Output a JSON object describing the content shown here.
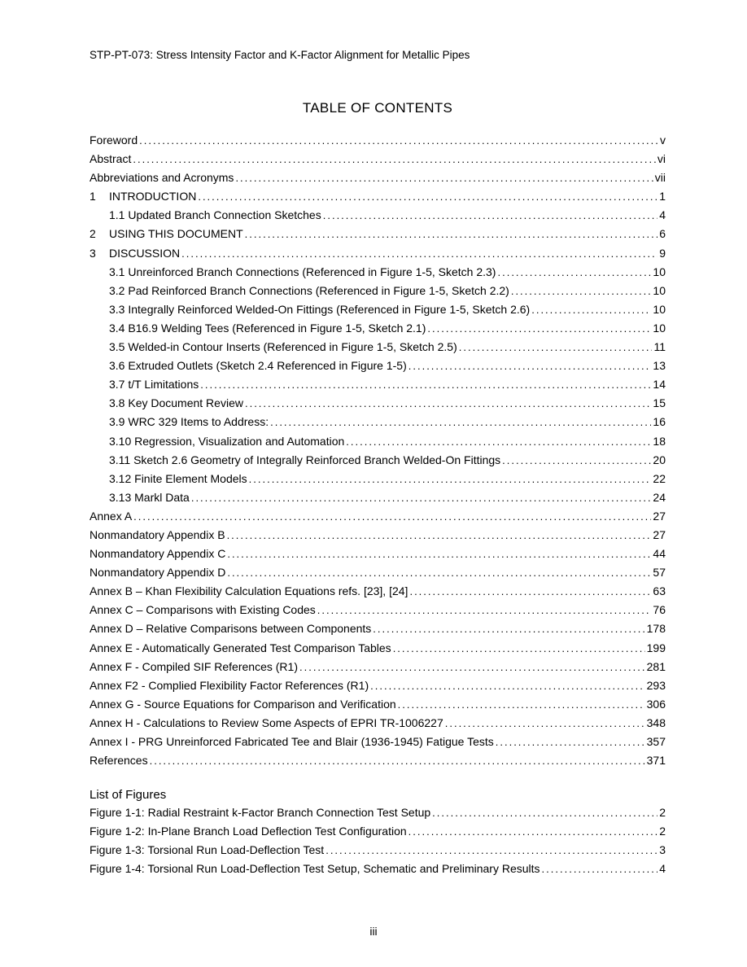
{
  "header": "STP-PT-073:  Stress Intensity Factor and K-Factor Alignment for Metallic Pipes",
  "title": "TABLE OF CONTENTS",
  "list_of_figures_title": "List of Figures",
  "page_number": "iii",
  "toc": [
    {
      "num": "",
      "indent": 0,
      "label": "Foreword",
      "page": "v"
    },
    {
      "num": "",
      "indent": 0,
      "label": "Abstract",
      "page": "vi"
    },
    {
      "num": "",
      "indent": 0,
      "label": "Abbreviations and Acronyms",
      "page": " vii"
    },
    {
      "num": "1",
      "indent": 0,
      "label": "INTRODUCTION",
      "page": "1"
    },
    {
      "num": "",
      "indent": 1,
      "label": "1.1 Updated Branch Connection Sketches",
      "page": "4"
    },
    {
      "num": "2",
      "indent": 0,
      "label": "USING THIS DOCUMENT",
      "page": "6"
    },
    {
      "num": "3",
      "indent": 0,
      "label": "DISCUSSION",
      "page": "9"
    },
    {
      "num": "",
      "indent": 1,
      "label": "3.1 Unreinforced Branch Connections (Referenced in Figure 1-5, Sketch 2.3)",
      "page": "10"
    },
    {
      "num": "",
      "indent": 1,
      "label": "3.2 Pad Reinforced Branch Connections (Referenced in Figure 1-5, Sketch 2.2)",
      "page": "10"
    },
    {
      "num": "",
      "indent": 1,
      "label": "3.3 Integrally Reinforced Welded-On Fittings (Referenced in Figure 1-5, Sketch 2.6)",
      "page": "10"
    },
    {
      "num": "",
      "indent": 1,
      "label": "3.4 B16.9 Welding Tees (Referenced in Figure 1-5, Sketch 2.1)",
      "page": "10"
    },
    {
      "num": "",
      "indent": 1,
      "label": "3.5 Welded-in Contour Inserts (Referenced in Figure 1-5, Sketch 2.5)",
      "page": "11"
    },
    {
      "num": "",
      "indent": 1,
      "label": "3.6 Extruded Outlets (Sketch 2.4 Referenced in Figure 1-5)",
      "page": "13"
    },
    {
      "num": "",
      "indent": 1,
      "label": "3.7 t/T Limitations",
      "page": "14"
    },
    {
      "num": "",
      "indent": 1,
      "label": "3.8 Key Document Review",
      "page": "15"
    },
    {
      "num": "",
      "indent": 1,
      "label": "3.9 WRC 329 Items to Address:",
      "page": "16"
    },
    {
      "num": "",
      "indent": 1,
      "label": "3.10 Regression, Visualization and Automation",
      "page": "18"
    },
    {
      "num": "",
      "indent": 1,
      "label": "3.11 Sketch 2.6 Geometry of Integrally Reinforced Branch Welded-On Fittings",
      "page": "20"
    },
    {
      "num": "",
      "indent": 1,
      "label": "3.12 Finite Element Models",
      "page": "22"
    },
    {
      "num": "",
      "indent": 1,
      "label": "3.13 Markl Data",
      "page": "24"
    },
    {
      "num": "",
      "indent": 0,
      "label": "Annex A",
      "page": "27"
    },
    {
      "num": "",
      "indent": 0,
      "label": "Nonmandatory Appendix B",
      "page": "27"
    },
    {
      "num": "",
      "indent": 0,
      "label": "Nonmandatory Appendix C",
      "page": "44"
    },
    {
      "num": "",
      "indent": 0,
      "label": "Nonmandatory Appendix D",
      "page": "57"
    },
    {
      "num": "",
      "indent": 0,
      "label": "Annex B – Khan Flexibility Calculation Equations refs. [23], [24]",
      "page": "63"
    },
    {
      "num": "",
      "indent": 0,
      "label": "Annex C – Comparisons with Existing Codes",
      "page": "76"
    },
    {
      "num": "",
      "indent": 0,
      "label": "Annex D – Relative Comparisons between Components",
      "page": "178"
    },
    {
      "num": "",
      "indent": 0,
      "label": "Annex E  - Automatically Generated Test Comparison Tables",
      "page": "199"
    },
    {
      "num": "",
      "indent": 0,
      "label": "Annex F - Compiled SIF References (R1)",
      "page": "281"
    },
    {
      "num": "",
      "indent": 0,
      "label": "Annex F2 - Complied Flexibility Factor References (R1)",
      "page": "293"
    },
    {
      "num": "",
      "indent": 0,
      "label": "Annex G - Source Equations for Comparison and Verification",
      "page": "306"
    },
    {
      "num": "",
      "indent": 0,
      "label": "Annex H - Calculations to Review Some Aspects of EPRI TR-1006227",
      "page": "348"
    },
    {
      "num": "",
      "indent": 0,
      "label": "Annex I - PRG Unreinforced Fabricated Tee and Blair (1936-1945) Fatigue Tests",
      "page": "357"
    },
    {
      "num": "",
      "indent": 0,
      "label": "References",
      "page": "371"
    }
  ],
  "figures": [
    {
      "label": "Figure 1-1:  Radial Restraint k-Factor Branch Connection Test Setup",
      "page": "2"
    },
    {
      "label": "Figure 1-2:  In-Plane Branch Load Deflection Test Configuration",
      "page": "2"
    },
    {
      "label": "Figure 1-3:  Torsional Run Load-Deflection Test",
      "page": "3"
    },
    {
      "label": "Figure 1-4:  Torsional Run Load-Deflection Test Setup, Schematic and Preliminary Results",
      "page": "4"
    }
  ]
}
